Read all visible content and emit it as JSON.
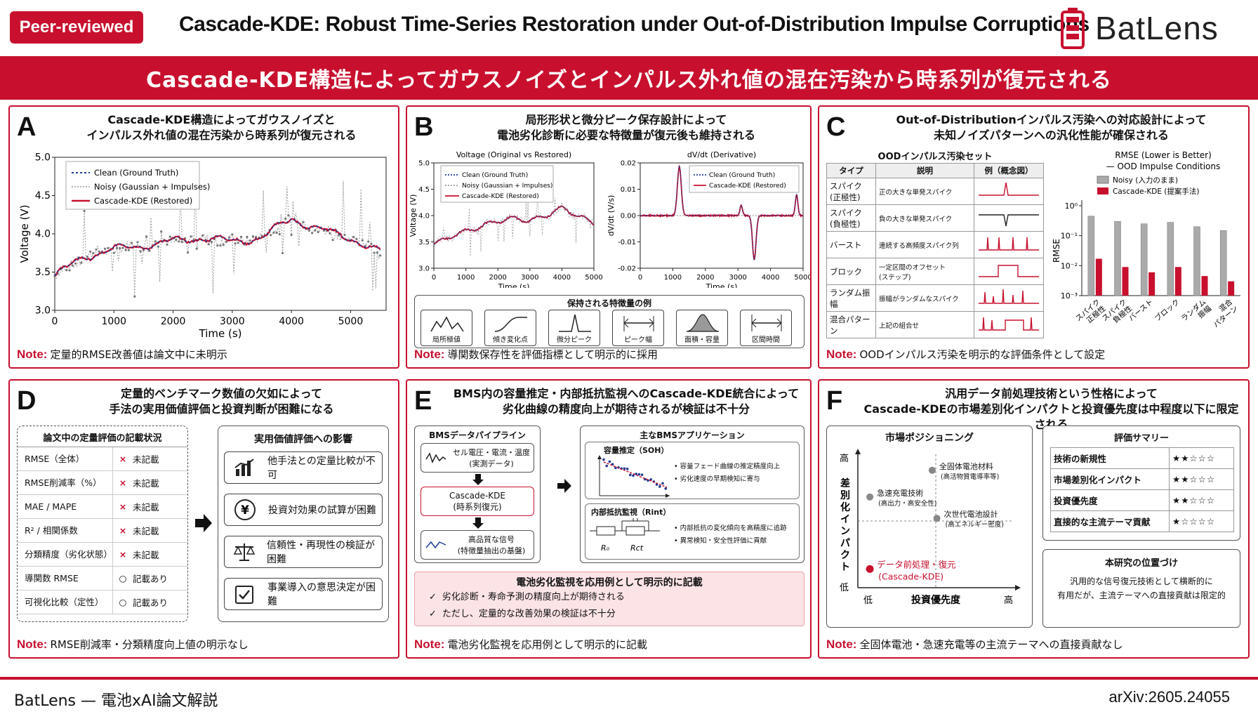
{
  "header": {
    "badge": "Peer-reviewed",
    "title": "Cascade-KDE: Robust Time-Series Restoration under Out-of-Distribution Impulse Corruptions",
    "logo": "BatLens"
  },
  "banner": "Cascade-KDE構造によってガウスノイズとインパルス外れ値の混在汚染から時系列が復元される",
  "colors": {
    "accent": "#c8102e",
    "clean": "#1f3a93",
    "noisy": "#888888",
    "restored": "#c8102e"
  },
  "panelA": {
    "label": "A",
    "title1": "Cascade-KDE構造によってガウスノイズと",
    "title2": "インパルス外れ値の混在汚染から時系列が復元される",
    "note_label": "Note:",
    "note": "定量的RMSE改善値は論文中に未明示",
    "chart_data": {
      "type": "line",
      "xlabel": "Time (s)",
      "ylabel": "Voltage (V)",
      "xlim": [
        0,
        5600
      ],
      "ylim": [
        3.0,
        5.0
      ],
      "xticks": [
        "0",
        "1000",
        "2000",
        "3000",
        "4000",
        "5000"
      ],
      "yticks": [
        "3.0",
        "3.5",
        "4.0",
        "4.5",
        "5.0"
      ],
      "legend_position": "top-left",
      "series": [
        {
          "name": "Clean (Ground Truth)",
          "x": [
            0,
            500,
            1000,
            1500,
            2000,
            2500,
            3000,
            3500,
            4000,
            4500,
            5000,
            5500
          ],
          "y": [
            3.45,
            3.7,
            3.8,
            3.85,
            3.9,
            3.95,
            3.9,
            3.95,
            4.2,
            4.05,
            3.95,
            3.75
          ]
        },
        {
          "name": "Noisy (Gaussian + Impulses)",
          "x": [
            0,
            500,
            1000,
            1500,
            2000,
            2500,
            3000,
            3500,
            4000,
            4500,
            5000,
            5500
          ],
          "y": [
            3.45,
            3.7,
            3.8,
            3.85,
            3.9,
            3.95,
            3.9,
            3.95,
            4.2,
            4.05,
            3.95,
            3.75
          ]
        },
        {
          "name": "Cascade-KDE (Restored)",
          "x": [
            0,
            500,
            1000,
            1500,
            2000,
            2500,
            3000,
            3500,
            4000,
            4500,
            5000,
            5500
          ],
          "y": [
            3.45,
            3.7,
            3.8,
            3.85,
            3.9,
            3.95,
            3.9,
            3.95,
            4.2,
            4.05,
            3.95,
            3.75
          ]
        }
      ]
    }
  },
  "panelB": {
    "label": "B",
    "title1": "局形形状と微分ピーク保存設計によって",
    "title2": "電池劣化診断に必要な特徴量が復元後も維持される",
    "note_label": "Note:",
    "note": "導関数保存性を評価指標として明示的に採用",
    "features_title": "保持される特徴量の例",
    "features": [
      "局所極値",
      "傾き変化点",
      "微分ピーク",
      "ピーク幅",
      "面積・容量",
      "区間時間"
    ],
    "chart_data": [
      {
        "type": "line",
        "title": "Voltage (Original vs Restored)",
        "xlabel": "Time (s)",
        "ylabel": "Voltage (V)",
        "xlim": [
          0,
          5000
        ],
        "ylim": [
          3.0,
          5.0
        ],
        "xticks": [
          "0",
          "1000",
          "2000",
          "3000",
          "4000",
          "5000"
        ],
        "yticks": [
          "3.0",
          "3.5",
          "4.0",
          "4.5",
          "5.0"
        ],
        "series": [
          {
            "name": "Clean (Ground Truth)",
            "x": [
              0,
              500,
              1000,
              1500,
              2000,
              2500,
              3000,
              3500,
              4000,
              4500,
              5000
            ],
            "y": [
              3.45,
              3.6,
              3.7,
              3.8,
              3.9,
              3.95,
              3.9,
              4.0,
              4.15,
              4.0,
              3.85
            ]
          },
          {
            "name": "Noisy (Gaussian + Impulses)",
            "x": [
              0,
              500,
              1000,
              1500,
              2000,
              2500,
              3000,
              3500,
              4000,
              4500,
              5000
            ],
            "y": [
              3.45,
              3.6,
              3.7,
              3.8,
              3.9,
              3.95,
              3.9,
              4.0,
              4.15,
              4.0,
              3.85
            ]
          },
          {
            "name": "Cascade-KDE (Restored)",
            "x": [
              0,
              500,
              1000,
              1500,
              2000,
              2500,
              3000,
              3500,
              4000,
              4500,
              5000
            ],
            "y": [
              3.45,
              3.6,
              3.7,
              3.8,
              3.9,
              3.95,
              3.9,
              4.0,
              4.15,
              4.0,
              3.85
            ]
          }
        ]
      },
      {
        "type": "line",
        "title": "dV/dt (Derivative)",
        "xlabel": "Time (s)",
        "ylabel": "dV/dt (V/s)",
        "xlim": [
          0,
          5000
        ],
        "ylim": [
          -0.02,
          0.02
        ],
        "xticks": [
          "0",
          "1000",
          "2000",
          "3000",
          "4000",
          "5000"
        ],
        "yticks": [
          "-0.02",
          "-0.01",
          "0.00",
          "0.01",
          "0.02"
        ],
        "series": [
          {
            "name": "Clean (Ground Truth)",
            "x": [
              0,
              800,
              1100,
              1200,
              1300,
              1600,
              2500,
              3000,
              3100,
              3400,
              3500,
              3600,
              4000,
              4600,
              4800,
              5000
            ],
            "y": [
              0,
              0,
              0,
              0.019,
              0,
              0,
              0,
              0,
              0.004,
              0,
              -0.017,
              0,
              0,
              0,
              0.008,
              0
            ]
          },
          {
            "name": "Cascade-KDE (Restored)",
            "x": [
              0,
              800,
              1100,
              1200,
              1300,
              1600,
              2500,
              3000,
              3100,
              3400,
              3500,
              3600,
              4000,
              4600,
              4800,
              5000
            ],
            "y": [
              0,
              0,
              0,
              0.019,
              0,
              0,
              0,
              0,
              0.004,
              0,
              -0.017,
              0,
              0,
              0,
              0.008,
              0
            ]
          }
        ]
      }
    ]
  },
  "panelC": {
    "label": "C",
    "title1": "Out-of-Distributionインパルス汚染への対応設計によって",
    "title2": "未知ノイズパターンへの汎化性能が確保される",
    "table_title": "OODインパルス汚染セット",
    "table_headers": [
      "タイプ",
      "説明",
      "例（概念図）"
    ],
    "table_rows": [
      {
        "type": "スパイク\n(正極性)",
        "desc": "正の大きな単発スパイク"
      },
      {
        "type": "スパイク\n(負極性)",
        "desc": "負の大きな単発スパイク"
      },
      {
        "type": "バースト",
        "desc": "連続する高頻度スパイク列"
      },
      {
        "type": "ブロック",
        "desc": "一定区間のオフセット\n(ステップ)"
      },
      {
        "type": "ランダム振幅",
        "desc": "振幅がランダムなスパイク"
      },
      {
        "type": "混合パターン",
        "desc": "上記の組合せ"
      }
    ],
    "note_label": "Note:",
    "note": "OODインパルス汚染を明示的な評価条件として設定",
    "chart_data": {
      "type": "bar",
      "title": "RMSE (Lower is Better)",
      "subtitle": "— OOD Impulse Conditions",
      "ylabel": "RMSE",
      "log_scale": true,
      "ylim": [
        0.001,
        1
      ],
      "yticks": [
        "10⁰",
        "10⁻¹",
        "10⁻²",
        "10⁻³"
      ],
      "categories": [
        "スパイク\n正極性",
        "スパイク\n負極性",
        "バースト",
        "ブロック",
        "ランダム\n振幅",
        "混合\nパターン"
      ],
      "series": [
        {
          "name": "Noisy (入力のまま)",
          "values": [
            0.45,
            0.3,
            0.25,
            0.28,
            0.2,
            0.15
          ]
        },
        {
          "name": "Cascade-KDE (提案手法)",
          "values": [
            0.017,
            0.009,
            0.006,
            0.009,
            0.0045,
            0.003
          ]
        }
      ]
    }
  },
  "panelD": {
    "label": "D",
    "title1": "定量的ベンチマーク数値の欠如によって",
    "title2": "手法の実用価値評価と投資判断が困難になる",
    "status_title": "論文中の定量評価の記載状況",
    "status_rows": [
      {
        "metric": "RMSE（全体）",
        "mark": "×",
        "status": "未記載"
      },
      {
        "metric": "RMSE削減率（%）",
        "mark": "×",
        "status": "未記載"
      },
      {
        "metric": "MAE / MAPE",
        "mark": "×",
        "status": "未記載"
      },
      {
        "metric": "R² / 相関係数",
        "mark": "×",
        "status": "未記載"
      },
      {
        "metric": "分類精度（劣化状態）",
        "mark": "×",
        "status": "未記載"
      },
      {
        "metric": "導関数 RMSE",
        "mark": "○",
        "status": "記載あり"
      },
      {
        "metric": "可視化比較（定性）",
        "mark": "○",
        "status": "記載あり"
      }
    ],
    "impact_title": "実用価値評価への影響",
    "impacts": [
      "他手法との定量比較が不可",
      "投資対効果の試算が困難",
      "信頼性・再現性の検証が困難",
      "事業導入の意思決定が困難"
    ],
    "note_label": "Note:",
    "note": "RMSE削減率・分類精度向上値の明示なし"
  },
  "panelE": {
    "label": "E",
    "title1": "BMS内の容量推定・内部抵抗監視へのCascade-KDE統合によって",
    "title2": "劣化曲線の精度向上が期待されるが検証は不十分",
    "pipeline_title": "BMSデータパイプライン",
    "pipeline": [
      "セル電圧・電流・温度\n(実測データ)",
      "Cascade-KDE\n(時系列復元)",
      "高品質な信号\n(特徴量抽出の基盤)"
    ],
    "apps_title": "主なBMSアプリケーション",
    "soh_title": "容量推定（SOH）",
    "soh_bullets": [
      "容量フェード曲線の推定精度向上",
      "劣化速度の早期検知に寄与"
    ],
    "rint_title": "内部抵抗監視（Rint）",
    "rint_bullets": [
      "内部抵抗の変化傾向を高精度に追跡",
      "異常検知・安全性評価に貢献"
    ],
    "r0": "R₀",
    "rct": "Rct",
    "callout_title": "電池劣化監視を応用例として明示的に記載",
    "callout_items": [
      "劣化診断・寿命予測の精度向上が期待される",
      "ただし、定量的な改善効果の検証は不十分"
    ],
    "note_label": "Note:",
    "note": "電池劣化監視を応用例として明示的に記載"
  },
  "panelF": {
    "label": "F",
    "title1": "汎用データ前処理技術という性格によって",
    "title2": "Cascade-KDEの市場差別化インパクトと投資優先度は中程度以下に限定される",
    "matrix_title": "市場ポジショニング",
    "y_axis": "差別化インパクト",
    "x_axis": "投資優先度",
    "high": "高",
    "low": "低",
    "points": [
      {
        "label": "全固体電池材料\n(高活物質電導率等)",
        "x": 0.45,
        "y": 0.88,
        "highlight": false
      },
      {
        "label": "急速充電技術\n(高出力・高安全性)",
        "x": 0.05,
        "y": 0.68,
        "highlight": false
      },
      {
        "label": "次世代電池設計\n(高エネルギー密度)",
        "x": 0.48,
        "y": 0.52,
        "highlight": false
      },
      {
        "label": "データ前処理・復元\n(Cascade-KDE)",
        "x": 0.05,
        "y": 0.14,
        "highlight": true
      }
    ],
    "summary_title": "評価サマリー",
    "summary": [
      {
        "item": "技術の新規性",
        "stars": "★★☆☆☆"
      },
      {
        "item": "市場差別化インパクト",
        "stars": "★★☆☆☆"
      },
      {
        "item": "投資優先度",
        "stars": "★★☆☆☆"
      },
      {
        "item": "直接的な主流テーマ貢献",
        "stars": "★☆☆☆☆"
      }
    ],
    "position_title": "本研究の位置づけ",
    "position_text": "汎用的な信号復元技術として横断的に\n有用だが、主流テーマへの直接貢献は限定的",
    "note_label": "Note:",
    "note": "全固体電池・急速充電等の主流テーマへの直接貢献なし"
  },
  "footer": {
    "left": "BatLens — 電池xAI論文解説",
    "right": "arXiv:2605.24055"
  }
}
